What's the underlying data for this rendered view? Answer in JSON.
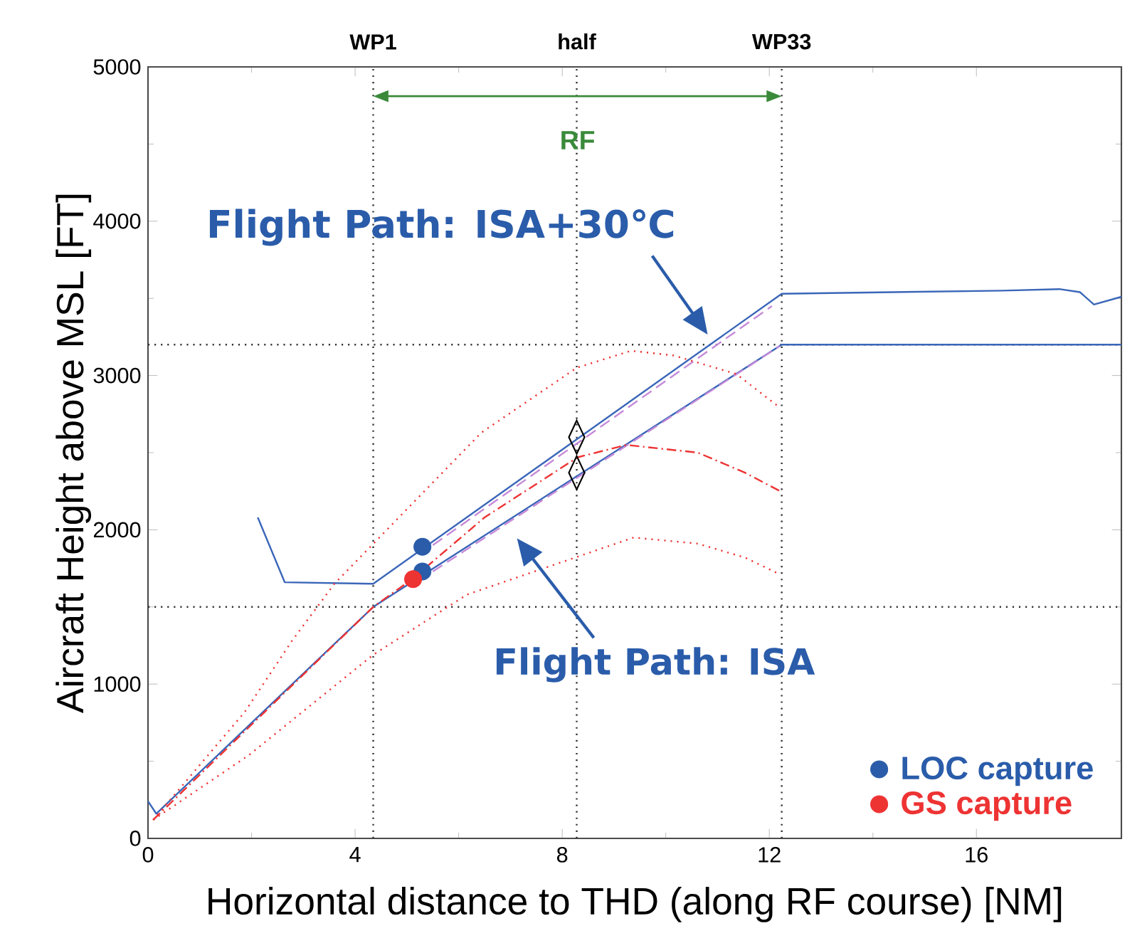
{
  "chart_data": {
    "type": "line",
    "xlabel": "Horizontal distance to THD (along RF course) [NM]",
    "ylabel": "Aircraft Height above MSL [FT]",
    "xlim": [
      0,
      18.8
    ],
    "ylim": [
      0,
      5000
    ],
    "xticks": [
      0,
      4,
      8,
      12,
      16
    ],
    "yticks": [
      0,
      1000,
      2000,
      3000,
      4000,
      5000
    ],
    "legend": "bottom right",
    "series": [
      {
        "color": "#3a66b8",
        "line_style": "solid",
        "x": [
          2.12,
          2.64,
          4.35,
          12.24,
          16.5,
          17.6,
          18.0,
          18.27,
          18.8
        ],
        "values": [
          2080,
          1660,
          1650,
          3530,
          3550,
          3560,
          3540,
          3460,
          3510
        ]
      },
      {
        "color": "#3a66b8",
        "line_style": "solid",
        "x": [
          0,
          0.16,
          4.35,
          12.24,
          18.8
        ],
        "values": [
          240,
          160,
          1500,
          3200,
          3200
        ]
      },
      {
        "color": "#c58ad8",
        "line_style": "dashed",
        "x": [
          5.5,
          12.05
        ],
        "values": [
          1900,
          3450
        ]
      },
      {
        "color": "#c58ad8",
        "line_style": "dashed",
        "x": [
          5.5,
          12.2
        ],
        "values": [
          1730,
          3190
        ]
      },
      {
        "color": "#ee3333",
        "line_style": "dotted",
        "x": [
          0.1,
          1.87,
          2.78,
          3.6,
          6.44,
          8.28,
          9.33,
          10.15,
          11.36,
          12.21
        ],
        "values": [
          120,
          820,
          1280,
          1650,
          2630,
          3050,
          3160,
          3130,
          3010,
          2790
        ]
      },
      {
        "color": "#ee3333",
        "line_style": "dotted",
        "x": [
          0.1,
          1.95,
          4.35,
          6.16,
          9.38,
          10.62,
          11.53,
          12.21
        ],
        "values": [
          120,
          540,
          1190,
          1580,
          1950,
          1910,
          1820,
          1710
        ]
      },
      {
        "color": "#ee3333",
        "line_style": "dashdot",
        "x": [
          0.1,
          4.35,
          5.1,
          6.5,
          8.3,
          9.24,
          10.62,
          11.53,
          12.21
        ],
        "values": [
          120,
          1500,
          1680,
          2080,
          2470,
          2550,
          2500,
          2370,
          2250
        ]
      },
      {
        "type": "scatter",
        "color": "#000000",
        "marker": "diamond",
        "x": [
          8.28,
          8.28
        ],
        "values": [
          2600,
          2370
        ]
      },
      {
        "type": "scatter",
        "name": "LOC capture",
        "color": "#2a5caa",
        "marker": "circle",
        "x": [
          5.3,
          5.3
        ],
        "values": [
          1890,
          1730
        ]
      },
      {
        "type": "scatter",
        "name": "GS capture",
        "color": "#ee3333",
        "marker": "circle",
        "x": [
          5.12
        ],
        "values": [
          1680
        ]
      }
    ],
    "ref_lines": [
      {
        "axis": "x",
        "value": 4.35,
        "label": "WP1",
        "color": "#333333",
        "line_style": "dotted"
      },
      {
        "axis": "x",
        "value": 8.28,
        "label": "half",
        "color": "#333333",
        "line_style": "dotted"
      },
      {
        "axis": "x",
        "value": 12.24,
        "label": "WP33",
        "color": "#333333",
        "line_style": "dotted"
      },
      {
        "axis": "y",
        "value": 3200,
        "color": "#333333",
        "line_style": "dotted"
      },
      {
        "axis": "y",
        "value": 1500,
        "color": "#333333",
        "line_style": "dotted"
      }
    ],
    "annotations": [
      "RF",
      "Flight Path: ISA+30℃",
      "Flight Path: ISA"
    ]
  }
}
